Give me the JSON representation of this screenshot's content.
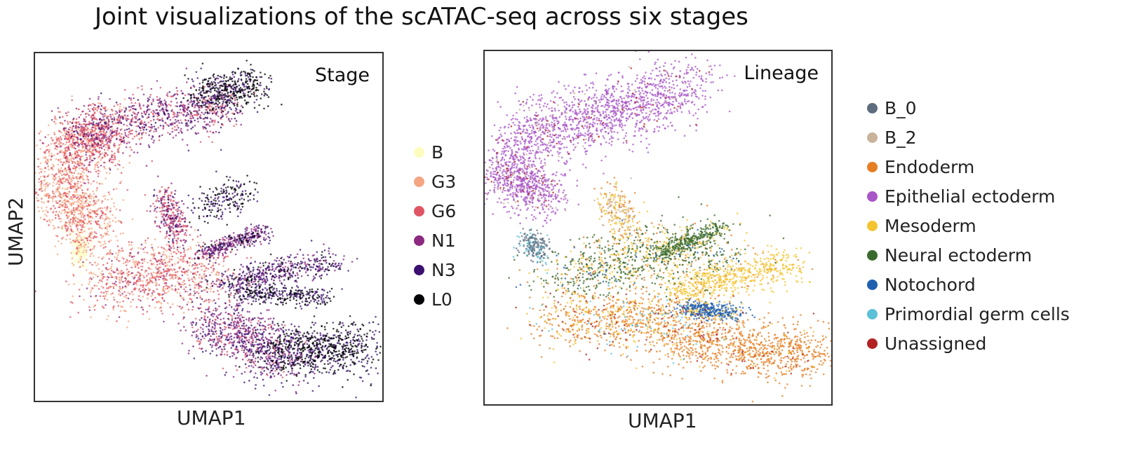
{
  "page_title": "Joint visualizations of the scATAC-seq across six stages",
  "chart_data": [
    {
      "type": "scatter",
      "panel_label": "Stage",
      "xlabel": "UMAP1",
      "ylabel": "UMAP2",
      "grid": false,
      "legend_position": "right",
      "series": [
        {
          "name": "B",
          "color": "#fcfdbf"
        },
        {
          "name": "G3",
          "color": "#f4a582"
        },
        {
          "name": "G6",
          "color": "#e05565"
        },
        {
          "name": "N1",
          "color": "#8c2981"
        },
        {
          "name": "N3",
          "color": "#3b0f70"
        },
        {
          "name": "L0",
          "color": "#000004"
        }
      ]
    },
    {
      "type": "scatter",
      "panel_label": "Lineage",
      "xlabel": "UMAP1",
      "ylabel": "",
      "grid": false,
      "legend_position": "right",
      "series": [
        {
          "name": "B_0",
          "color": "#5d6d7e"
        },
        {
          "name": "B_2",
          "color": "#c9b39b"
        },
        {
          "name": "Endoderm",
          "color": "#e67e22"
        },
        {
          "name": "Epithelial ectoderm",
          "color": "#a855c8"
        },
        {
          "name": "Mesoderm",
          "color": "#f4c430"
        },
        {
          "name": "Neural ectoderm",
          "color": "#3a6b2e"
        },
        {
          "name": "Notochord",
          "color": "#1f5fb0"
        },
        {
          "name": "Primordial germ cells",
          "color": "#5bc0d8"
        },
        {
          "name": "Unassigned",
          "color": "#b22222"
        }
      ]
    }
  ]
}
